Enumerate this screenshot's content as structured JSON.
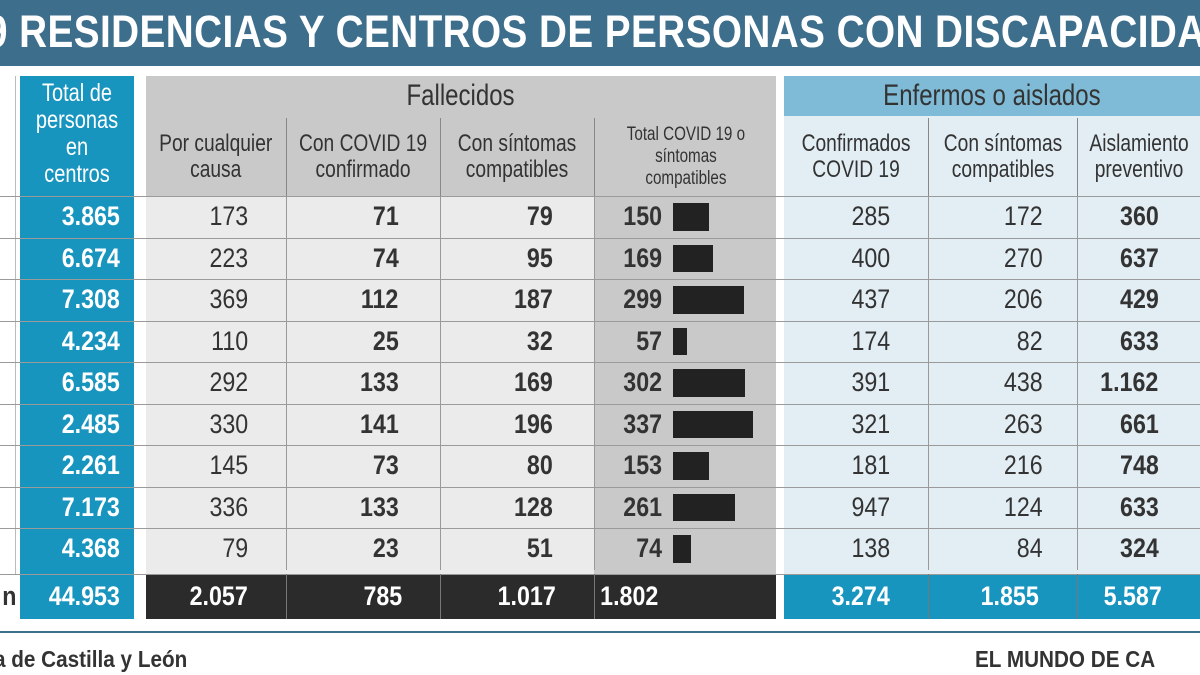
{
  "title": "9 RESIDENCIAS Y CENTROS DE PERSONAS CON DISCAPACIDA",
  "chart_data": {
    "type": "table",
    "columns": {
      "total": "Total de personas en centros",
      "fallecidos_group": "Fallecidos",
      "fall_cualquier": "Por cualquier causa",
      "fall_covid": "Con COVID 19 confirmado",
      "fall_sintomas": "Con síntomas compatibles",
      "fall_total": "Total COVID 19 o síntomas compatibles",
      "enfermos_group": "Enfermos o aislados",
      "enf_confirmados": "Confirmados COVID 19",
      "enf_sintomas": "Con síntomas compatibles",
      "enf_aislamiento": "Aislamiento preventivo"
    },
    "rows": [
      {
        "label": "",
        "total": "3.865",
        "fall_cualquier": "173",
        "fall_covid": "71",
        "fall_sintomas": "79",
        "fall_total": "150",
        "fall_total_value": 150,
        "enf_confirmados": "285",
        "enf_sintomas": "172",
        "enf_aislamiento": "360"
      },
      {
        "label": "",
        "total": "6.674",
        "fall_cualquier": "223",
        "fall_covid": "74",
        "fall_sintomas": "95",
        "fall_total": "169",
        "fall_total_value": 169,
        "enf_confirmados": "400",
        "enf_sintomas": "270",
        "enf_aislamiento": "637"
      },
      {
        "label": "",
        "total": "7.308",
        "fall_cualquier": "369",
        "fall_covid": "112",
        "fall_sintomas": "187",
        "fall_total": "299",
        "fall_total_value": 299,
        "enf_confirmados": "437",
        "enf_sintomas": "206",
        "enf_aislamiento": "429"
      },
      {
        "label": "",
        "total": "4.234",
        "fall_cualquier": "110",
        "fall_covid": "25",
        "fall_sintomas": "32",
        "fall_total": "57",
        "fall_total_value": 57,
        "enf_confirmados": "174",
        "enf_sintomas": "82",
        "enf_aislamiento": "633"
      },
      {
        "label": "",
        "total": "6.585",
        "fall_cualquier": "292",
        "fall_covid": "133",
        "fall_sintomas": "169",
        "fall_total": "302",
        "fall_total_value": 302,
        "enf_confirmados": "391",
        "enf_sintomas": "438",
        "enf_aislamiento": "1.162"
      },
      {
        "label": "",
        "total": "2.485",
        "fall_cualquier": "330",
        "fall_covid": "141",
        "fall_sintomas": "196",
        "fall_total": "337",
        "fall_total_value": 337,
        "enf_confirmados": "321",
        "enf_sintomas": "263",
        "enf_aislamiento": "661"
      },
      {
        "label": "",
        "total": "2.261",
        "fall_cualquier": "145",
        "fall_covid": "73",
        "fall_sintomas": "80",
        "fall_total": "153",
        "fall_total_value": 153,
        "enf_confirmados": "181",
        "enf_sintomas": "216",
        "enf_aislamiento": "748"
      },
      {
        "label": "",
        "total": "7.173",
        "fall_cualquier": "336",
        "fall_covid": "133",
        "fall_sintomas": "128",
        "fall_total": "261",
        "fall_total_value": 261,
        "enf_confirmados": "947",
        "enf_sintomas": "124",
        "enf_aislamiento": "633"
      },
      {
        "label": "",
        "total": "4.368",
        "fall_cualquier": "79",
        "fall_covid": "23",
        "fall_sintomas": "51",
        "fall_total": "74",
        "fall_total_value": 74,
        "enf_confirmados": "138",
        "enf_sintomas": "84",
        "enf_aislamiento": "324"
      }
    ],
    "totals": {
      "label": "n",
      "total": "44.953",
      "fall_cualquier": "2.057",
      "fall_covid": "785",
      "fall_sintomas": "1.017",
      "fall_total": "1.802",
      "enf_confirmados": "3.274",
      "enf_sintomas": "1.855",
      "enf_aislamiento": "5.587"
    },
    "bar_max": 337
  },
  "footer": {
    "source": "a de Castilla y León",
    "credit": "EL MUNDO DE CA"
  },
  "colors": {
    "banner": "#3d6e8c",
    "blue": "#1895bf",
    "light_blue": "#7fbad6",
    "pale_blue": "#e3eef4",
    "grey_header": "#c9c9c9",
    "grey_body": "#ebebeb",
    "dark": "#2b2b2b"
  }
}
